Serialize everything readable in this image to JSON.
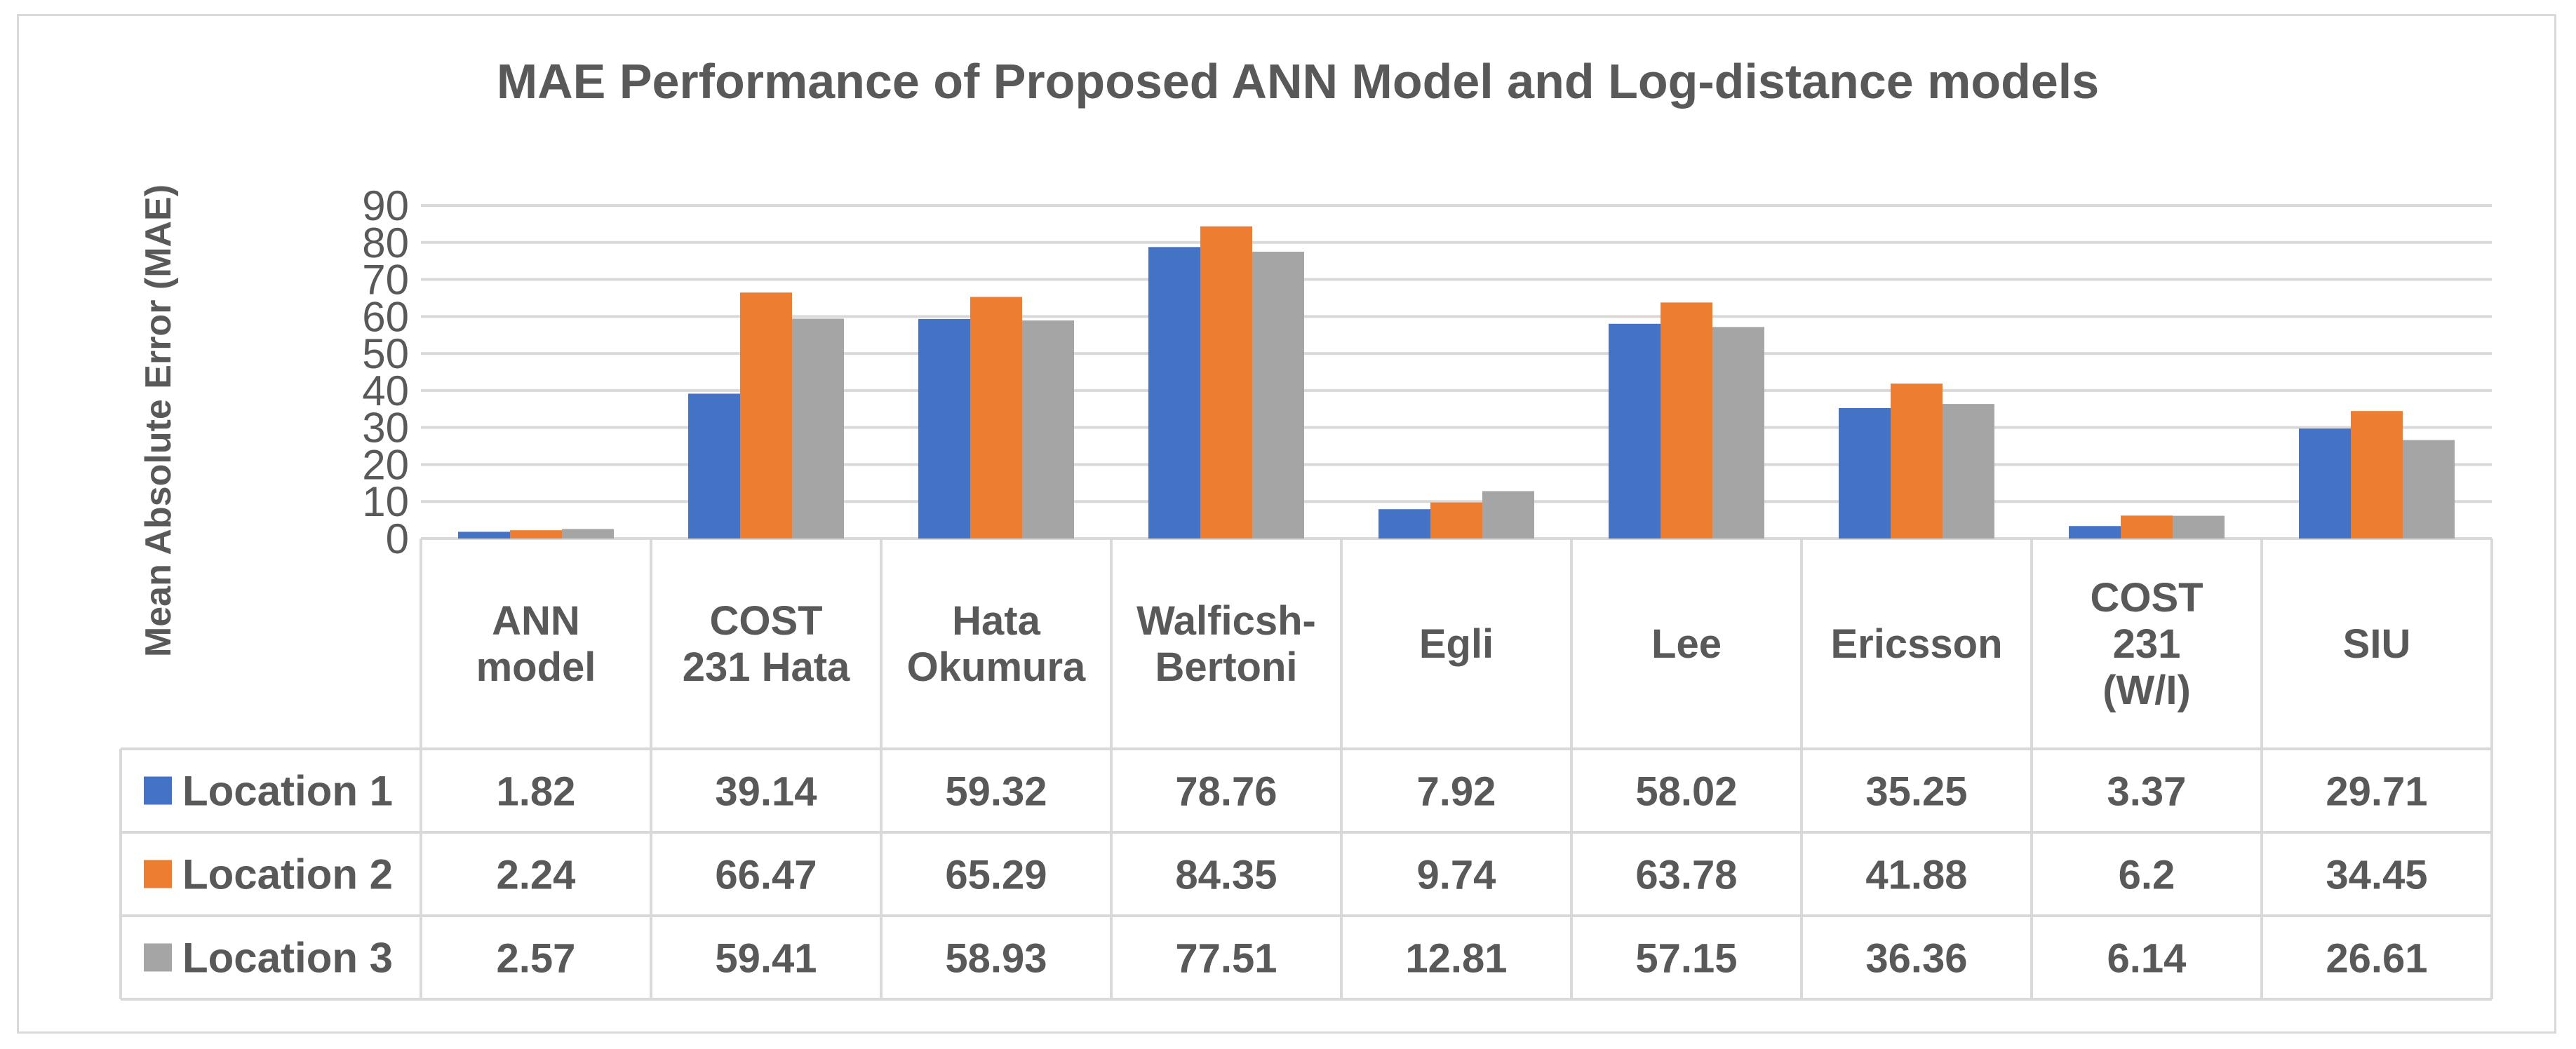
{
  "chart_data": {
    "type": "bar",
    "title": "MAE Performance of Proposed ANN Model and Log-distance models",
    "xlabel": "",
    "ylabel": "Mean Absolute Error (MAE)",
    "ylim": [
      0,
      90
    ],
    "yticks": [
      "0",
      "10",
      "20",
      "30",
      "40",
      "50",
      "60",
      "70",
      "80",
      "90"
    ],
    "grid": true,
    "legend": "data-table",
    "categories": [
      [
        "ANN",
        "model"
      ],
      [
        "COST",
        "231 Hata"
      ],
      [
        "Hata",
        "Okumura"
      ],
      [
        "Walficsh-",
        "Bertoni"
      ],
      [
        "Egli"
      ],
      [
        "Lee"
      ],
      [
        "Ericsson"
      ],
      [
        "COST",
        "231",
        "(W/I)"
      ],
      [
        "SIU"
      ]
    ],
    "series": [
      {
        "name": "Location 1",
        "color": "#4472c4",
        "values": [
          1.82,
          39.14,
          59.32,
          78.76,
          7.92,
          58.02,
          35.25,
          3.37,
          29.71
        ],
        "labels": [
          "1.82",
          "39.14",
          "59.32",
          "78.76",
          "7.92",
          "58.02",
          "35.25",
          "3.37",
          "29.71"
        ]
      },
      {
        "name": "Location 2",
        "color": "#ed7d31",
        "values": [
          2.24,
          66.47,
          65.29,
          84.35,
          9.74,
          63.78,
          41.88,
          6.2,
          34.45
        ],
        "labels": [
          "2.24",
          "66.47",
          "65.29",
          "84.35",
          "9.74",
          "63.78",
          "41.88",
          "6.2",
          "34.45"
        ]
      },
      {
        "name": "Location 3",
        "color": "#a5a5a5",
        "values": [
          2.57,
          59.41,
          58.93,
          77.51,
          12.81,
          57.15,
          36.36,
          6.14,
          26.61
        ],
        "labels": [
          "2.57",
          "59.41",
          "58.93",
          "77.51",
          "12.81",
          "57.15",
          "36.36",
          "6.14",
          "26.61"
        ]
      }
    ]
  }
}
